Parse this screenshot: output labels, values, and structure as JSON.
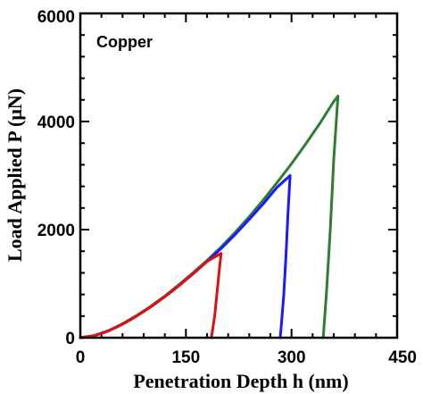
{
  "chart_data": {
    "type": "line",
    "title": "",
    "xlabel": "Penetration Depth h (nm)",
    "ylabel": "Load Applied P (μN)",
    "xlim": [
      0,
      450
    ],
    "ylim": [
      0,
      6000
    ],
    "xticks": [
      0,
      150,
      300,
      450
    ],
    "yticks": [
      0,
      2000,
      4000,
      6000
    ],
    "x_minor_step": 30,
    "y_minor_step": 400,
    "grid": false,
    "legend": "none",
    "annotation": "Copper",
    "series": [
      {
        "color": "#2e7d32",
        "x": [
          0,
          20,
          40,
          60,
          80,
          100,
          120,
          140,
          160,
          180,
          200,
          220,
          240,
          260,
          280,
          300,
          320,
          340,
          360,
          366,
          360,
          355,
          350,
          345
        ],
        "y": [
          0,
          40,
          130,
          260,
          410,
          580,
          770,
          980,
          1200,
          1430,
          1680,
          1950,
          2240,
          2550,
          2880,
          3220,
          3580,
          3960,
          4370,
          4470,
          3300,
          2000,
          900,
          0
        ]
      },
      {
        "color": "#1a1aff",
        "x": [
          0,
          20,
          40,
          60,
          80,
          100,
          120,
          140,
          160,
          180,
          200,
          220,
          240,
          260,
          280,
          298,
          295,
          292,
          289,
          286,
          284
        ],
        "y": [
          0,
          38,
          125,
          250,
          400,
          570,
          760,
          960,
          1180,
          1410,
          1650,
          1910,
          2190,
          2480,
          2790,
          3000,
          2300,
          1500,
          800,
          300,
          0
        ]
      },
      {
        "color": "#e01010",
        "x": [
          0,
          20,
          40,
          60,
          80,
          100,
          120,
          140,
          160,
          180,
          200,
          197,
          194,
          191,
          188,
          186
        ],
        "y": [
          0,
          38,
          125,
          250,
          400,
          570,
          760,
          960,
          1180,
          1410,
          1560,
          1200,
          800,
          420,
          150,
          0
        ]
      }
    ]
  }
}
